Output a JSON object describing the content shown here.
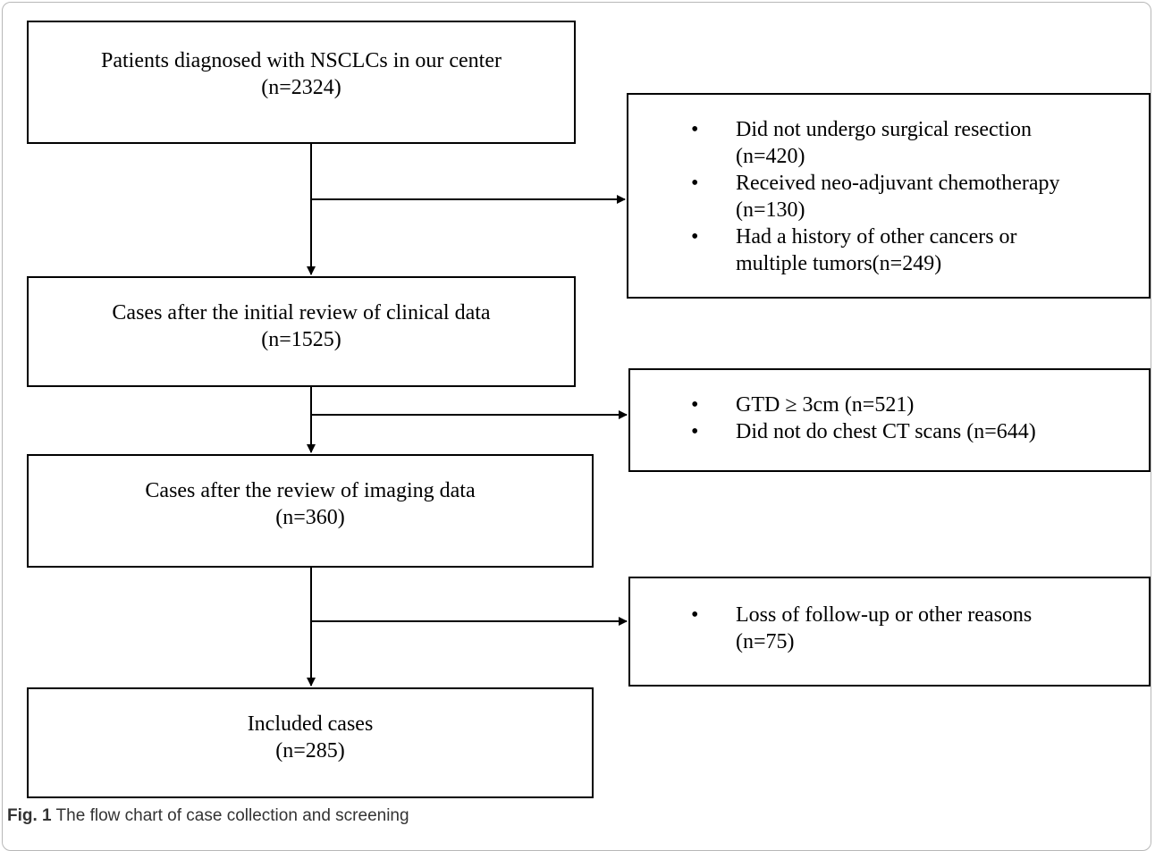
{
  "main_boxes": [
    {
      "line1": "Patients diagnosed with NSCLCs in our center",
      "line2": "(n=2324)"
    },
    {
      "line1": "Cases after the initial review of clinical data",
      "line2": "(n=1525)"
    },
    {
      "line1": "Cases after the review of imaging data",
      "line2": "(n=360)"
    },
    {
      "line1": "Included cases",
      "line2": "(n=285)"
    }
  ],
  "exclusion_boxes": [
    {
      "items": [
        [
          "Did not undergo surgical resection",
          "(n=420)"
        ],
        [
          "Received neo-adjuvant chemotherapy",
          "(n=130)"
        ],
        [
          "Had a history of other cancers or",
          "multiple tumors(n=249)"
        ]
      ]
    },
    {
      "items": [
        [
          "GTD ≥ 3cm (n=521)"
        ],
        [
          "Did not do chest CT scans (n=644)"
        ]
      ]
    },
    {
      "items": [
        [
          "Loss of follow-up or other reasons",
          "(n=75)"
        ]
      ]
    }
  ],
  "bullet_symbol": "•",
  "caption": {
    "label": "Fig. 1",
    "text": " The flow chart of case collection and screening"
  }
}
